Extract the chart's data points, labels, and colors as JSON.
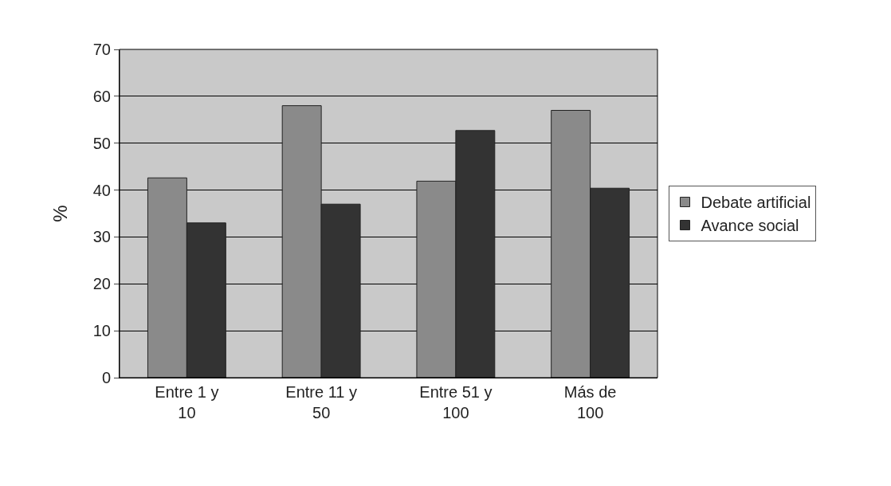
{
  "chart_data": {
    "type": "bar",
    "ylabel": "%",
    "categories": [
      "Entre 1 y 10",
      "Entre 11 y 50",
      "Entre 51 y 100",
      "Más de 100"
    ],
    "series": [
      {
        "name": "Debate artificial",
        "color": "#8a8a8a",
        "values": [
          42.6,
          58,
          41.9,
          57
        ]
      },
      {
        "name": "Avance social",
        "color": "#333333",
        "values": [
          33,
          37,
          52.7,
          40.4
        ]
      }
    ],
    "ylim": [
      0,
      70
    ],
    "yticks": [
      0,
      10,
      20,
      30,
      40,
      50,
      60,
      70
    ],
    "grid": "y",
    "legend": "right"
  }
}
